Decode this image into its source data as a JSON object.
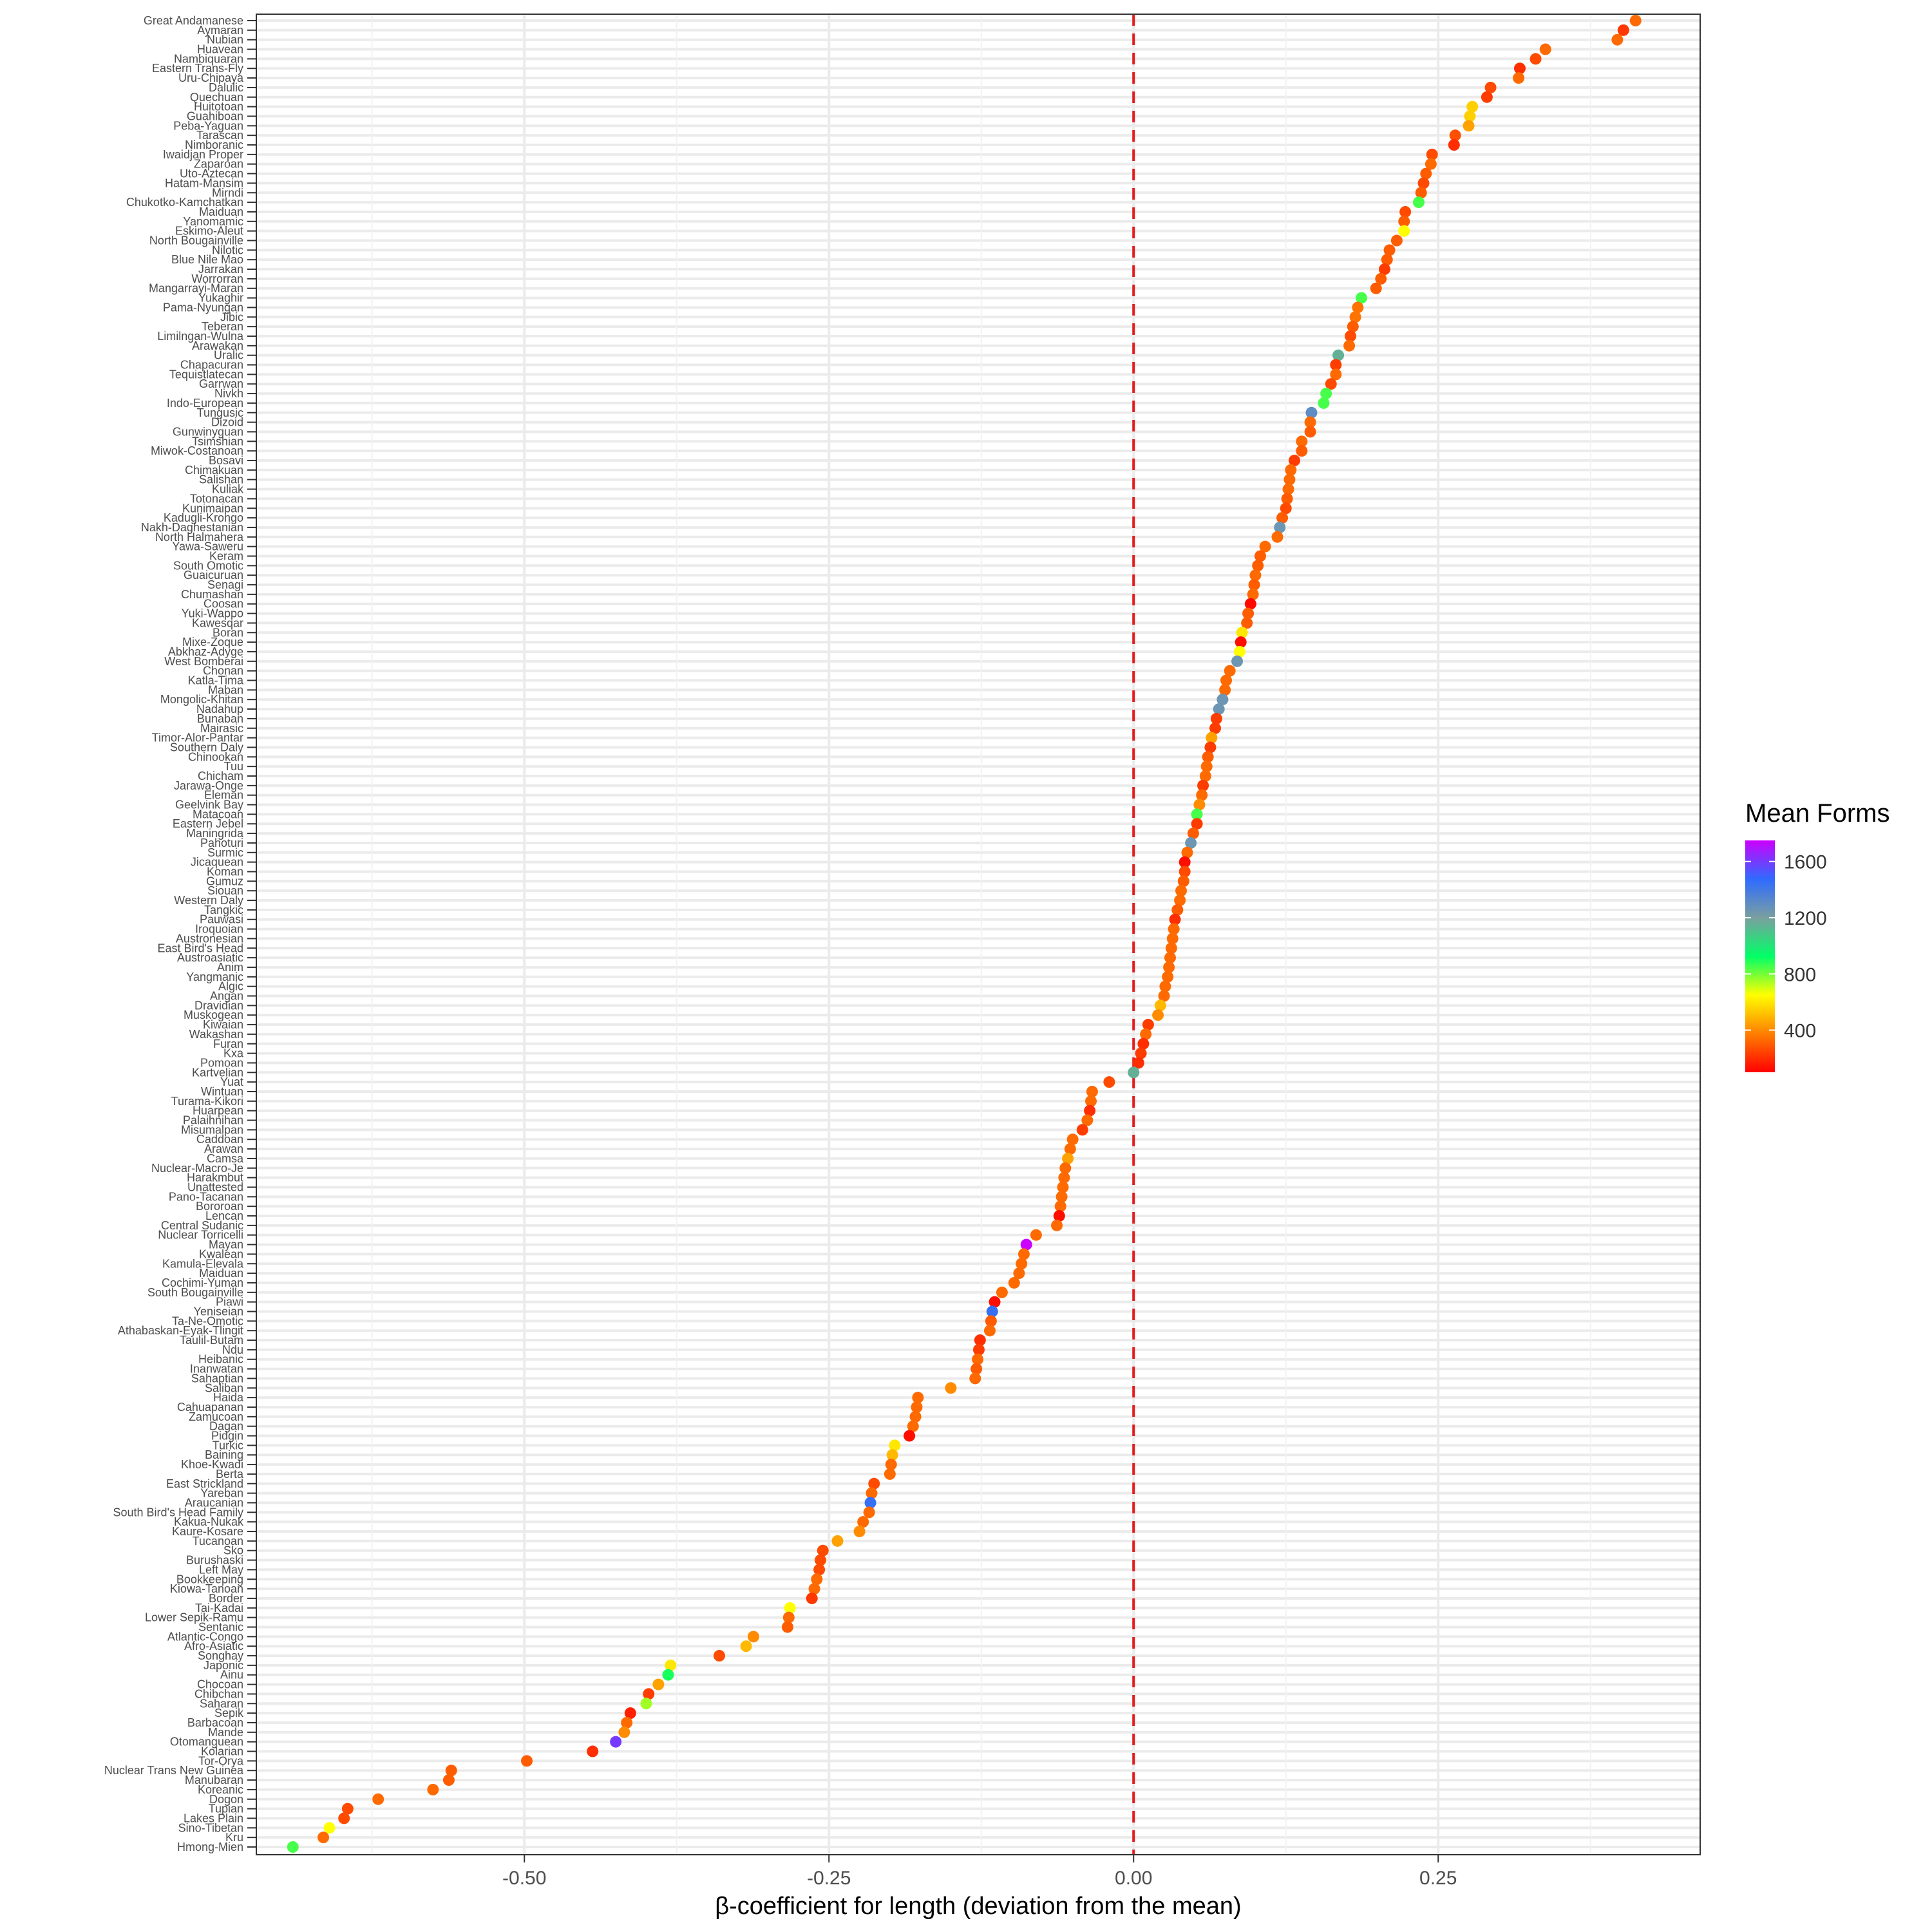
{
  "chart_data": {
    "type": "scatter",
    "xlabel": "β-coefficient for length (deviation from the mean)",
    "xticks": [
      -0.5,
      -0.25,
      0.0,
      0.25
    ],
    "xtick_labels": [
      "-0.50",
      "-0.25",
      "0.00",
      "0.25"
    ],
    "xlim": [
      -0.72,
      0.465
    ],
    "reference_line": {
      "x": 0.0,
      "color": "#e41a1c",
      "style": "dashed"
    },
    "grid": true,
    "legend": {
      "title": "Mean Forms",
      "position": "right",
      "ticks": [
        400,
        800,
        1200,
        1600
      ],
      "range": [
        100,
        1750
      ],
      "colors": [
        "#ff0000",
        "#ff7f00",
        "#ffff00",
        "#00ff66",
        "#7a9fa0",
        "#2f6bff",
        "#cc00ff"
      ]
    },
    "points": [
      {
        "label": "Great Andamanese",
        "x": 0.412,
        "forms": 330
      },
      {
        "label": "Aymaran",
        "x": 0.402,
        "forms": 220
      },
      {
        "label": "Nubian",
        "x": 0.397,
        "forms": 330
      },
      {
        "label": "Huavean",
        "x": 0.338,
        "forms": 330
      },
      {
        "label": "Nambiquaran",
        "x": 0.33,
        "forms": 260
      },
      {
        "label": "Eastern Trans-Fly",
        "x": 0.317,
        "forms": 200
      },
      {
        "label": "Uru-Chipaya",
        "x": 0.316,
        "forms": 330
      },
      {
        "label": "Dalulic",
        "x": 0.293,
        "forms": 260
      },
      {
        "label": "Quechuan",
        "x": 0.29,
        "forms": 230
      },
      {
        "label": "Huitotoan",
        "x": 0.278,
        "forms": 550
      },
      {
        "label": "Guahiboan",
        "x": 0.276,
        "forms": 550
      },
      {
        "label": "Peba-Yaguan",
        "x": 0.275,
        "forms": 450
      },
      {
        "label": "Tarascan",
        "x": 0.264,
        "forms": 270
      },
      {
        "label": "Nimboranic",
        "x": 0.263,
        "forms": 200
      },
      {
        "label": "Iwaidjan Proper",
        "x": 0.245,
        "forms": 260
      },
      {
        "label": "Zaparoan",
        "x": 0.244,
        "forms": 330
      },
      {
        "label": "Uto-Aztecan",
        "x": 0.24,
        "forms": 300
      },
      {
        "label": "Hatam-Mansim",
        "x": 0.238,
        "forms": 260
      },
      {
        "label": "Mirndi",
        "x": 0.236,
        "forms": 300
      },
      {
        "label": "Chukotko-Kamchatkan",
        "x": 0.234,
        "forms": 850
      },
      {
        "label": "Maiduan",
        "x": 0.223,
        "forms": 260
      },
      {
        "label": "Yanomamic",
        "x": 0.222,
        "forms": 300
      },
      {
        "label": "Eskimo-Aleut",
        "x": 0.222,
        "forms": 650
      },
      {
        "label": "North Bougainville",
        "x": 0.216,
        "forms": 300
      },
      {
        "label": "Nilotic",
        "x": 0.21,
        "forms": 300
      },
      {
        "label": "Blue Nile Mao",
        "x": 0.208,
        "forms": 300
      },
      {
        "label": "Jarrakan",
        "x": 0.206,
        "forms": 230
      },
      {
        "label": "Worrorran",
        "x": 0.203,
        "forms": 300
      },
      {
        "label": "Mangarrayi-Maran",
        "x": 0.199,
        "forms": 300
      },
      {
        "label": "Yukaghir",
        "x": 0.187,
        "forms": 850
      },
      {
        "label": "Pama-Nyungan",
        "x": 0.184,
        "forms": 350
      },
      {
        "label": "Jibic",
        "x": 0.182,
        "forms": 350
      },
      {
        "label": "Teberan",
        "x": 0.18,
        "forms": 300
      },
      {
        "label": "Limilngan-Wulna",
        "x": 0.178,
        "forms": 260
      },
      {
        "label": "Arawakan",
        "x": 0.177,
        "forms": 330
      },
      {
        "label": "Uralic",
        "x": 0.168,
        "forms": 1150
      },
      {
        "label": "Chapacuran",
        "x": 0.166,
        "forms": 230
      },
      {
        "label": "Tequistlatecan",
        "x": 0.166,
        "forms": 330
      },
      {
        "label": "Garrwan",
        "x": 0.162,
        "forms": 260
      },
      {
        "label": "Nivkh",
        "x": 0.158,
        "forms": 850
      },
      {
        "label": "Indo-European",
        "x": 0.156,
        "forms": 850
      },
      {
        "label": "Tungusic",
        "x": 0.146,
        "forms": 1300
      },
      {
        "label": "Dizoid",
        "x": 0.145,
        "forms": 330
      },
      {
        "label": "Gunwinyguan",
        "x": 0.145,
        "forms": 300
      },
      {
        "label": "Tsimshian",
        "x": 0.138,
        "forms": 330
      },
      {
        "label": "Miwok-Costanoan",
        "x": 0.138,
        "forms": 300
      },
      {
        "label": "Bosavi",
        "x": 0.132,
        "forms": 230
      },
      {
        "label": "Chimakuan",
        "x": 0.129,
        "forms": 330
      },
      {
        "label": "Salishan",
        "x": 0.128,
        "forms": 330
      },
      {
        "label": "Kuliak",
        "x": 0.127,
        "forms": 330
      },
      {
        "label": "Totonacan",
        "x": 0.126,
        "forms": 300
      },
      {
        "label": "Kunimaipan",
        "x": 0.125,
        "forms": 260
      },
      {
        "label": "Kadugli-Krongo",
        "x": 0.122,
        "forms": 300
      },
      {
        "label": "Nakh-Daghestanian",
        "x": 0.12,
        "forms": 1250
      },
      {
        "label": "North Halmahera",
        "x": 0.118,
        "forms": 330
      },
      {
        "label": "Yawa-Saweru",
        "x": 0.108,
        "forms": 330
      },
      {
        "label": "Keram",
        "x": 0.104,
        "forms": 300
      },
      {
        "label": "South Omotic",
        "x": 0.102,
        "forms": 300
      },
      {
        "label": "Guaicuruan",
        "x": 0.1,
        "forms": 330
      },
      {
        "label": "Senagi",
        "x": 0.099,
        "forms": 300
      },
      {
        "label": "Chumashan",
        "x": 0.098,
        "forms": 330
      },
      {
        "label": "Coosan",
        "x": 0.096,
        "forms": 120
      },
      {
        "label": "Yuki-Wappo",
        "x": 0.094,
        "forms": 300
      },
      {
        "label": "Kawesqar",
        "x": 0.093,
        "forms": 300
      },
      {
        "label": "Boran",
        "x": 0.089,
        "forms": 600
      },
      {
        "label": "Mixe-Zoque",
        "x": 0.088,
        "forms": 130
      },
      {
        "label": "Abkhaz-Adyge",
        "x": 0.087,
        "forms": 650
      },
      {
        "label": "West Bomberai",
        "x": 0.085,
        "forms": 1250
      },
      {
        "label": "Chonan",
        "x": 0.079,
        "forms": 330
      },
      {
        "label": "Katla-Tima",
        "x": 0.076,
        "forms": 330
      },
      {
        "label": "Maban",
        "x": 0.075,
        "forms": 330
      },
      {
        "label": "Mongolic-Khitan",
        "x": 0.073,
        "forms": 1250
      },
      {
        "label": "Nadahup",
        "x": 0.07,
        "forms": 1250
      },
      {
        "label": "Bunaban",
        "x": 0.068,
        "forms": 230
      },
      {
        "label": "Mairasic",
        "x": 0.067,
        "forms": 230
      },
      {
        "label": "Timor-Alor-Pantar",
        "x": 0.064,
        "forms": 450
      },
      {
        "label": "Southern Daly",
        "x": 0.063,
        "forms": 230
      },
      {
        "label": "Chinookan",
        "x": 0.061,
        "forms": 300
      },
      {
        "label": "Tuu",
        "x": 0.06,
        "forms": 330
      },
      {
        "label": "Chicham",
        "x": 0.059,
        "forms": 330
      },
      {
        "label": "Jarawa-Onge",
        "x": 0.057,
        "forms": 230
      },
      {
        "label": "Eleman",
        "x": 0.056,
        "forms": 330
      },
      {
        "label": "Geelvink Bay",
        "x": 0.054,
        "forms": 400
      },
      {
        "label": "Matacoan",
        "x": 0.052,
        "forms": 850
      },
      {
        "label": "Eastern Jebel",
        "x": 0.052,
        "forms": 230
      },
      {
        "label": "Maningrida",
        "x": 0.049,
        "forms": 300
      },
      {
        "label": "Pahoturi",
        "x": 0.047,
        "forms": 1250
      },
      {
        "label": "Surmic",
        "x": 0.044,
        "forms": 330
      },
      {
        "label": "Jicaquean",
        "x": 0.042,
        "forms": 130
      },
      {
        "label": "Koman",
        "x": 0.042,
        "forms": 260
      },
      {
        "label": "Gumuz",
        "x": 0.041,
        "forms": 300
      },
      {
        "label": "Siouan",
        "x": 0.039,
        "forms": 330
      },
      {
        "label": "Western Daly",
        "x": 0.038,
        "forms": 330
      },
      {
        "label": "Tangkic",
        "x": 0.036,
        "forms": 300
      },
      {
        "label": "Pauwasi",
        "x": 0.034,
        "forms": 200
      },
      {
        "label": "Iroquoian",
        "x": 0.033,
        "forms": 330
      },
      {
        "label": "Austronesian",
        "x": 0.032,
        "forms": 330
      },
      {
        "label": "East Bird's Head",
        "x": 0.031,
        "forms": 330
      },
      {
        "label": "Austroasiatic",
        "x": 0.03,
        "forms": 330
      },
      {
        "label": "Anim",
        "x": 0.029,
        "forms": 330
      },
      {
        "label": "Yangmanic",
        "x": 0.028,
        "forms": 330
      },
      {
        "label": "Algic",
        "x": 0.026,
        "forms": 330
      },
      {
        "label": "Angan",
        "x": 0.025,
        "forms": 330
      },
      {
        "label": "Dravidian",
        "x": 0.022,
        "forms": 500
      },
      {
        "label": "Muskogean",
        "x": 0.02,
        "forms": 400
      },
      {
        "label": "Kiwaian",
        "x": 0.012,
        "forms": 230
      },
      {
        "label": "Wakashan",
        "x": 0.01,
        "forms": 330
      },
      {
        "label": "Furan",
        "x": 0.008,
        "forms": 200
      },
      {
        "label": "Kxa",
        "x": 0.006,
        "forms": 230
      },
      {
        "label": "Pomoan",
        "x": 0.004,
        "forms": 200
      },
      {
        "label": "Kartvelian",
        "x": 0.0,
        "forms": 1150
      },
      {
        "label": "Yuat",
        "x": -0.02,
        "forms": 260
      },
      {
        "label": "Wintuan",
        "x": -0.034,
        "forms": 330
      },
      {
        "label": "Turama-Kikori",
        "x": -0.035,
        "forms": 330
      },
      {
        "label": "Huarpean",
        "x": -0.036,
        "forms": 200
      },
      {
        "label": "Palaihnihan",
        "x": -0.038,
        "forms": 330
      },
      {
        "label": "Misumalpan",
        "x": -0.042,
        "forms": 230
      },
      {
        "label": "Caddoan",
        "x": -0.05,
        "forms": 330
      },
      {
        "label": "Arawan",
        "x": -0.052,
        "forms": 330
      },
      {
        "label": "Camsa",
        "x": -0.054,
        "forms": 450
      },
      {
        "label": "Nuclear-Macro-Je",
        "x": -0.056,
        "forms": 330
      },
      {
        "label": "Harakmbut",
        "x": -0.057,
        "forms": 330
      },
      {
        "label": "Unattested",
        "x": -0.058,
        "forms": 330
      },
      {
        "label": "Pano-Tacanan",
        "x": -0.059,
        "forms": 330
      },
      {
        "label": "Bororoan",
        "x": -0.06,
        "forms": 330
      },
      {
        "label": "Lencan",
        "x": -0.061,
        "forms": 130
      },
      {
        "label": "Central Sudanic",
        "x": -0.063,
        "forms": 330
      },
      {
        "label": "Nuclear Torricelli",
        "x": -0.08,
        "forms": 330
      },
      {
        "label": "Mayan",
        "x": -0.088,
        "forms": 1750
      },
      {
        "label": "Kwalean",
        "x": -0.09,
        "forms": 330
      },
      {
        "label": "Kamula-Elevala",
        "x": -0.092,
        "forms": 330
      },
      {
        "label": "Maiduan",
        "x": -0.094,
        "forms": 330
      },
      {
        "label": "Cochimi-Yuman",
        "x": -0.098,
        "forms": 330
      },
      {
        "label": "South Bougainville",
        "x": -0.108,
        "forms": 330
      },
      {
        "label": "Piawi",
        "x": -0.114,
        "forms": 130
      },
      {
        "label": "Yeniseian",
        "x": -0.116,
        "forms": 1450
      },
      {
        "label": "Ta-Ne-Omotic",
        "x": -0.117,
        "forms": 300
      },
      {
        "label": "Athabaskan-Eyak-Tlingit",
        "x": -0.118,
        "forms": 330
      },
      {
        "label": "Taulil-Butam",
        "x": -0.126,
        "forms": 200
      },
      {
        "label": "Ndu",
        "x": -0.127,
        "forms": 230
      },
      {
        "label": "Heibanic",
        "x": -0.128,
        "forms": 330
      },
      {
        "label": "Inanwatan",
        "x": -0.129,
        "forms": 300
      },
      {
        "label": "Sahaptian",
        "x": -0.13,
        "forms": 330
      },
      {
        "label": "Saliban",
        "x": -0.15,
        "forms": 400
      },
      {
        "label": "Haida",
        "x": -0.177,
        "forms": 330
      },
      {
        "label": "Cahuapanan",
        "x": -0.178,
        "forms": 330
      },
      {
        "label": "Zamucoan",
        "x": -0.179,
        "forms": 330
      },
      {
        "label": "Dagan",
        "x": -0.181,
        "forms": 330
      },
      {
        "label": "Pidgin",
        "x": -0.184,
        "forms": 130
      },
      {
        "label": "Turkic",
        "x": -0.196,
        "forms": 600
      },
      {
        "label": "Baining",
        "x": -0.198,
        "forms": 500
      },
      {
        "label": "Khoe-Kwadi",
        "x": -0.199,
        "forms": 330
      },
      {
        "label": "Berta",
        "x": -0.2,
        "forms": 330
      },
      {
        "label": "East Strickland",
        "x": -0.213,
        "forms": 260
      },
      {
        "label": "Yareban",
        "x": -0.215,
        "forms": 330
      },
      {
        "label": "Araucanian",
        "x": -0.216,
        "forms": 1450
      },
      {
        "label": "South Bird's Head Family",
        "x": -0.217,
        "forms": 330
      },
      {
        "label": "Kakua-Nukak",
        "x": -0.222,
        "forms": 330
      },
      {
        "label": "Kaure-Kosare",
        "x": -0.225,
        "forms": 400
      },
      {
        "label": "Tucanoan",
        "x": -0.243,
        "forms": 450
      },
      {
        "label": "Sko",
        "x": -0.255,
        "forms": 260
      },
      {
        "label": "Burushaski",
        "x": -0.257,
        "forms": 260
      },
      {
        "label": "Left May",
        "x": -0.258,
        "forms": 260
      },
      {
        "label": "Bookkeeping",
        "x": -0.26,
        "forms": 330
      },
      {
        "label": "Kiowa-Tanoan",
        "x": -0.262,
        "forms": 330
      },
      {
        "label": "Border",
        "x": -0.264,
        "forms": 220
      },
      {
        "label": "Tai-Kadai",
        "x": -0.282,
        "forms": 650
      },
      {
        "label": "Lower Sepik-Ramu",
        "x": -0.283,
        "forms": 330
      },
      {
        "label": "Sentanic",
        "x": -0.284,
        "forms": 300
      },
      {
        "label": "Atlantic-Congo",
        "x": -0.312,
        "forms": 400
      },
      {
        "label": "Afro-Asiatic",
        "x": -0.318,
        "forms": 500
      },
      {
        "label": "Songhay",
        "x": -0.34,
        "forms": 260
      },
      {
        "label": "Japonic",
        "x": -0.38,
        "forms": 600
      },
      {
        "label": "Ainu",
        "x": -0.382,
        "forms": 900
      },
      {
        "label": "Chocoan",
        "x": -0.39,
        "forms": 450
      },
      {
        "label": "Chibchan",
        "x": -0.398,
        "forms": 230
      },
      {
        "label": "Saharan",
        "x": -0.4,
        "forms": 750
      },
      {
        "label": "Sepik",
        "x": -0.413,
        "forms": 170
      },
      {
        "label": "Barbacoan",
        "x": -0.416,
        "forms": 330
      },
      {
        "label": "Mande",
        "x": -0.418,
        "forms": 400
      },
      {
        "label": "Otomanguean",
        "x": -0.425,
        "forms": 1600
      },
      {
        "label": "Kolarian",
        "x": -0.444,
        "forms": 200
      },
      {
        "label": "Tor-Orya",
        "x": -0.498,
        "forms": 300
      },
      {
        "label": "Nuclear Trans New Guinea",
        "x": -0.56,
        "forms": 300
      },
      {
        "label": "Manubaran",
        "x": -0.562,
        "forms": 300
      },
      {
        "label": "Koreanic",
        "x": -0.575,
        "forms": 330
      },
      {
        "label": "Dogon",
        "x": -0.62,
        "forms": 330
      },
      {
        "label": "Tupian",
        "x": -0.645,
        "forms": 260
      },
      {
        "label": "Lakes Plain",
        "x": -0.648,
        "forms": 260
      },
      {
        "label": "Sino-Tibetan",
        "x": -0.66,
        "forms": 650
      },
      {
        "label": "Kru",
        "x": -0.665,
        "forms": 330
      },
      {
        "label": "Hmong-Mien",
        "x": -0.69,
        "forms": 850
      }
    ]
  }
}
